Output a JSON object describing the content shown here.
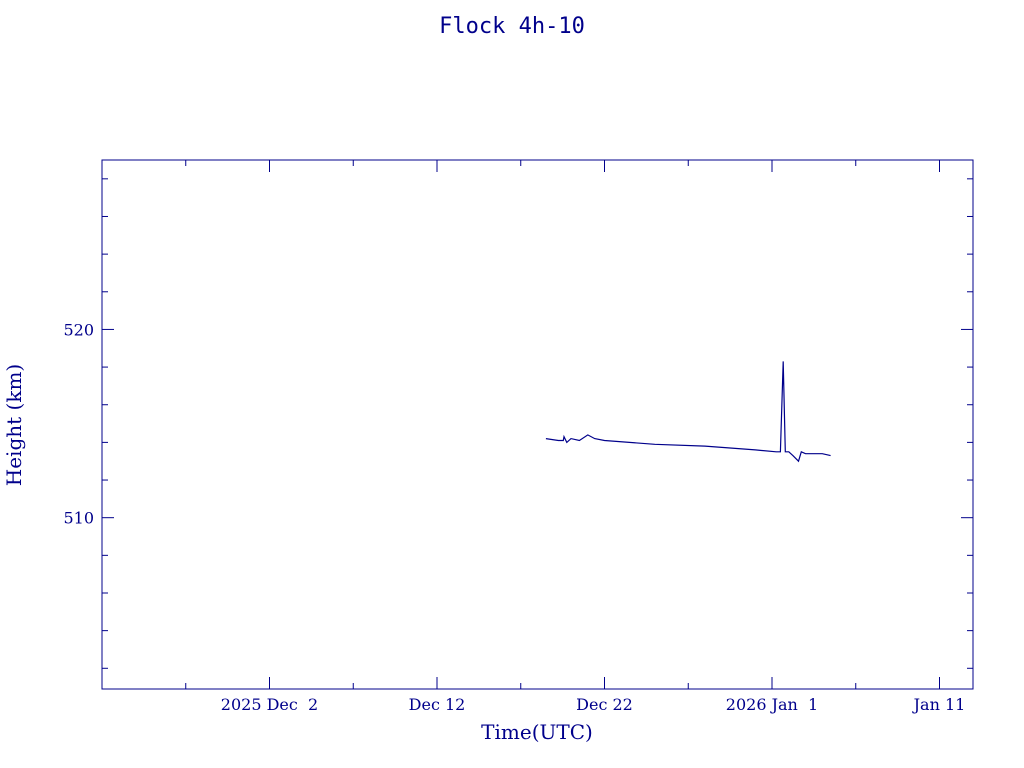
{
  "chart_data": {
    "type": "line",
    "title": "Flock 4h-10",
    "xlabel": "Time(UTC)",
    "ylabel": "Height (km)",
    "x_tick_labels": [
      "2025 Dec  2",
      "Dec 12",
      "Dec 22",
      "2026 Jan  1",
      "Jan 11"
    ],
    "x_tick_values": [
      "2025-12-02",
      "2025-12-12",
      "2025-12-22",
      "2026-01-01",
      "2026-01-11"
    ],
    "y_tick_labels": [
      "510",
      "520"
    ],
    "y_tick_values": [
      510,
      520
    ],
    "xlim": [
      "2025-11-22",
      "2026-01-13"
    ],
    "ylim": [
      500.9,
      529.0
    ],
    "grid": false,
    "line_color": "#00008b",
    "series": [
      {
        "x": [
          "2025-12-18T12:00",
          "2025-12-19T06:00",
          "2025-12-19T13:00",
          "2025-12-19T14:00",
          "2025-12-19T18:00",
          "2025-12-20T00:00",
          "2025-12-20T12:00",
          "2025-12-21T00:00",
          "2025-12-21T10:00",
          "2025-12-22T00:00",
          "2025-12-25T00:00",
          "2025-12-28T00:00",
          "2025-12-31T00:00",
          "2026-01-01T06:00",
          "2026-01-01T12:00",
          "2026-01-01T16:00",
          "2026-01-01T19:00",
          "2026-01-02T00:00",
          "2026-01-02T06:00",
          "2026-01-02T14:00",
          "2026-01-02T18:00",
          "2026-01-03T00:00",
          "2026-01-04T00:00",
          "2026-01-04T12:00"
        ],
        "y": [
          514.2,
          514.1,
          514.1,
          514.3,
          514.0,
          514.2,
          514.1,
          514.4,
          514.2,
          514.1,
          513.9,
          513.8,
          513.6,
          513.5,
          513.5,
          518.3,
          513.5,
          513.5,
          513.3,
          513.0,
          513.5,
          513.4,
          513.4,
          513.3
        ]
      }
    ]
  }
}
